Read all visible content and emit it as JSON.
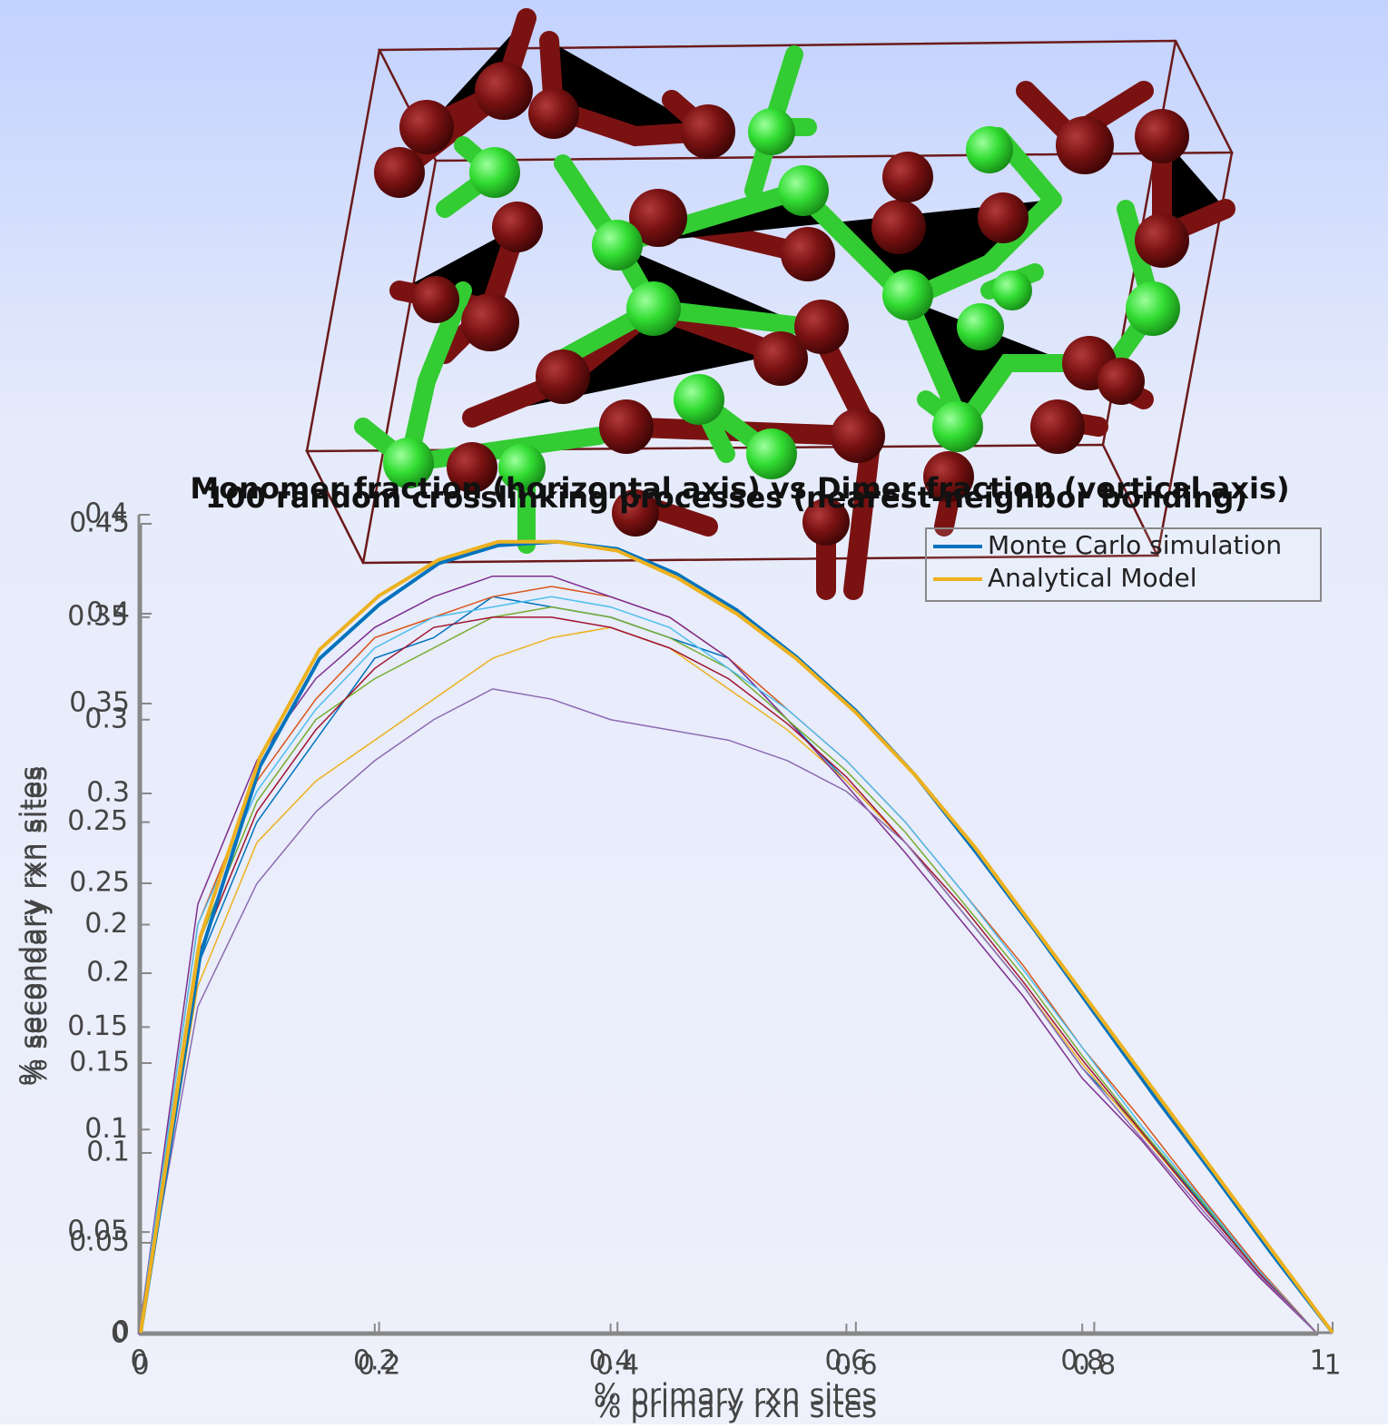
{
  "chart_data": [
    {
      "type": "line",
      "title": "Monomer fraction (horizontal axis) vs Dimer fraction (vertical axis)",
      "x_label": "% primary rxn sites",
      "y_label": "% secondary rxn sites",
      "x": [
        0,
        0.05,
        0.1,
        0.15,
        0.2,
        0.25,
        0.3,
        0.35,
        0.4,
        0.45,
        0.5,
        0.55,
        0.6,
        0.65,
        0.7,
        0.75,
        0.8,
        0.85,
        0.9,
        0.95,
        1
      ],
      "xlim": [
        0,
        1
      ],
      "xticks": [
        0,
        0.2,
        0.4,
        0.6,
        0.8,
        1
      ],
      "ylim": [
        0,
        0.4
      ],
      "yticks": [
        0,
        0.05,
        0.1,
        0.15,
        0.2,
        0.25,
        0.3,
        0.35,
        0.4
      ],
      "series": [
        {
          "color": "#0072bd",
          "values": [
            0,
            0.18,
            0.25,
            0.29,
            0.33,
            0.34,
            0.36,
            0.355,
            0.35,
            0.34,
            0.33,
            0.3,
            0.27,
            0.24,
            0.205,
            0.17,
            0.13,
            0.1,
            0.065,
            0.03,
            0
          ]
        },
        {
          "color": "#d95319",
          "values": [
            0,
            0.2,
            0.27,
            0.31,
            0.34,
            0.35,
            0.36,
            0.365,
            0.36,
            0.35,
            0.33,
            0.305,
            0.28,
            0.25,
            0.215,
            0.18,
            0.14,
            0.105,
            0.068,
            0.032,
            0
          ]
        },
        {
          "color": "#edb120",
          "values": [
            0,
            0.17,
            0.24,
            0.27,
            0.29,
            0.31,
            0.33,
            0.34,
            0.345,
            0.335,
            0.315,
            0.295,
            0.27,
            0.24,
            0.205,
            0.17,
            0.132,
            0.098,
            0.064,
            0.03,
            0
          ]
        },
        {
          "color": "#7e2f8e",
          "values": [
            0,
            0.21,
            0.28,
            0.32,
            0.345,
            0.36,
            0.37,
            0.37,
            0.36,
            0.35,
            0.33,
            0.3,
            0.268,
            0.235,
            0.2,
            0.165,
            0.125,
            0.095,
            0.06,
            0.028,
            0
          ]
        },
        {
          "color": "#77ac30",
          "values": [
            0,
            0.19,
            0.26,
            0.3,
            0.32,
            0.335,
            0.35,
            0.355,
            0.35,
            0.34,
            0.325,
            0.3,
            0.275,
            0.245,
            0.21,
            0.175,
            0.136,
            0.1,
            0.066,
            0.031,
            0
          ]
        },
        {
          "color": "#4dbeee",
          "values": [
            0,
            0.2,
            0.265,
            0.305,
            0.335,
            0.35,
            0.355,
            0.36,
            0.355,
            0.345,
            0.325,
            0.305,
            0.28,
            0.25,
            0.215,
            0.178,
            0.14,
            0.102,
            0.067,
            0.031,
            0
          ]
        },
        {
          "color": "#a2142f",
          "values": [
            0,
            0.185,
            0.255,
            0.295,
            0.325,
            0.345,
            0.35,
            0.35,
            0.345,
            0.335,
            0.32,
            0.298,
            0.272,
            0.24,
            0.208,
            0.172,
            0.134,
            0.099,
            0.064,
            0.03,
            0
          ]
        },
        {
          "color": "#8c6bb1",
          "values": [
            0,
            0.16,
            0.22,
            0.255,
            0.28,
            0.3,
            0.315,
            0.31,
            0.3,
            0.295,
            0.29,
            0.28,
            0.265,
            0.24,
            0.205,
            0.17,
            0.13,
            0.096,
            0.062,
            0.029,
            0
          ]
        }
      ]
    },
    {
      "type": "line",
      "title": "100 random crosslinking processes (nearest-neighbor bonding)",
      "x_label": "% primary rxn sites",
      "y_label": "% secondary rxn sites",
      "x": [
        0,
        0.05,
        0.1,
        0.15,
        0.2,
        0.25,
        0.3,
        0.35,
        0.4,
        0.45,
        0.5,
        0.55,
        0.6,
        0.65,
        0.7,
        0.75,
        0.8,
        0.85,
        0.9,
        0.95,
        1
      ],
      "xlim": [
        0,
        1
      ],
      "xticks": [
        0,
        0.2,
        0.4,
        0.6,
        0.8,
        1
      ],
      "ylim": [
        0,
        0.45
      ],
      "yticks": [
        0,
        0.05,
        0.1,
        0.15,
        0.2,
        0.25,
        0.3,
        0.35,
        0.4,
        0.45
      ],
      "legend": "upper right",
      "series": [
        {
          "name": "Monte Carlo simulation",
          "color": "#0072bd",
          "values": [
            0,
            0.21,
            0.315,
            0.375,
            0.405,
            0.428,
            0.438,
            0.44,
            0.436,
            0.422,
            0.402,
            0.376,
            0.346,
            0.31,
            0.268,
            0.224,
            0.178,
            0.132,
            0.088,
            0.043,
            0
          ]
        },
        {
          "name": "Analytical Model",
          "color": "#edb120",
          "values": [
            0,
            0.22,
            0.32,
            0.38,
            0.41,
            0.43,
            0.44,
            0.44,
            0.435,
            0.42,
            0.4,
            0.375,
            0.345,
            0.31,
            0.27,
            0.225,
            0.18,
            0.135,
            0.09,
            0.045,
            0
          ]
        }
      ]
    }
  ]
}
